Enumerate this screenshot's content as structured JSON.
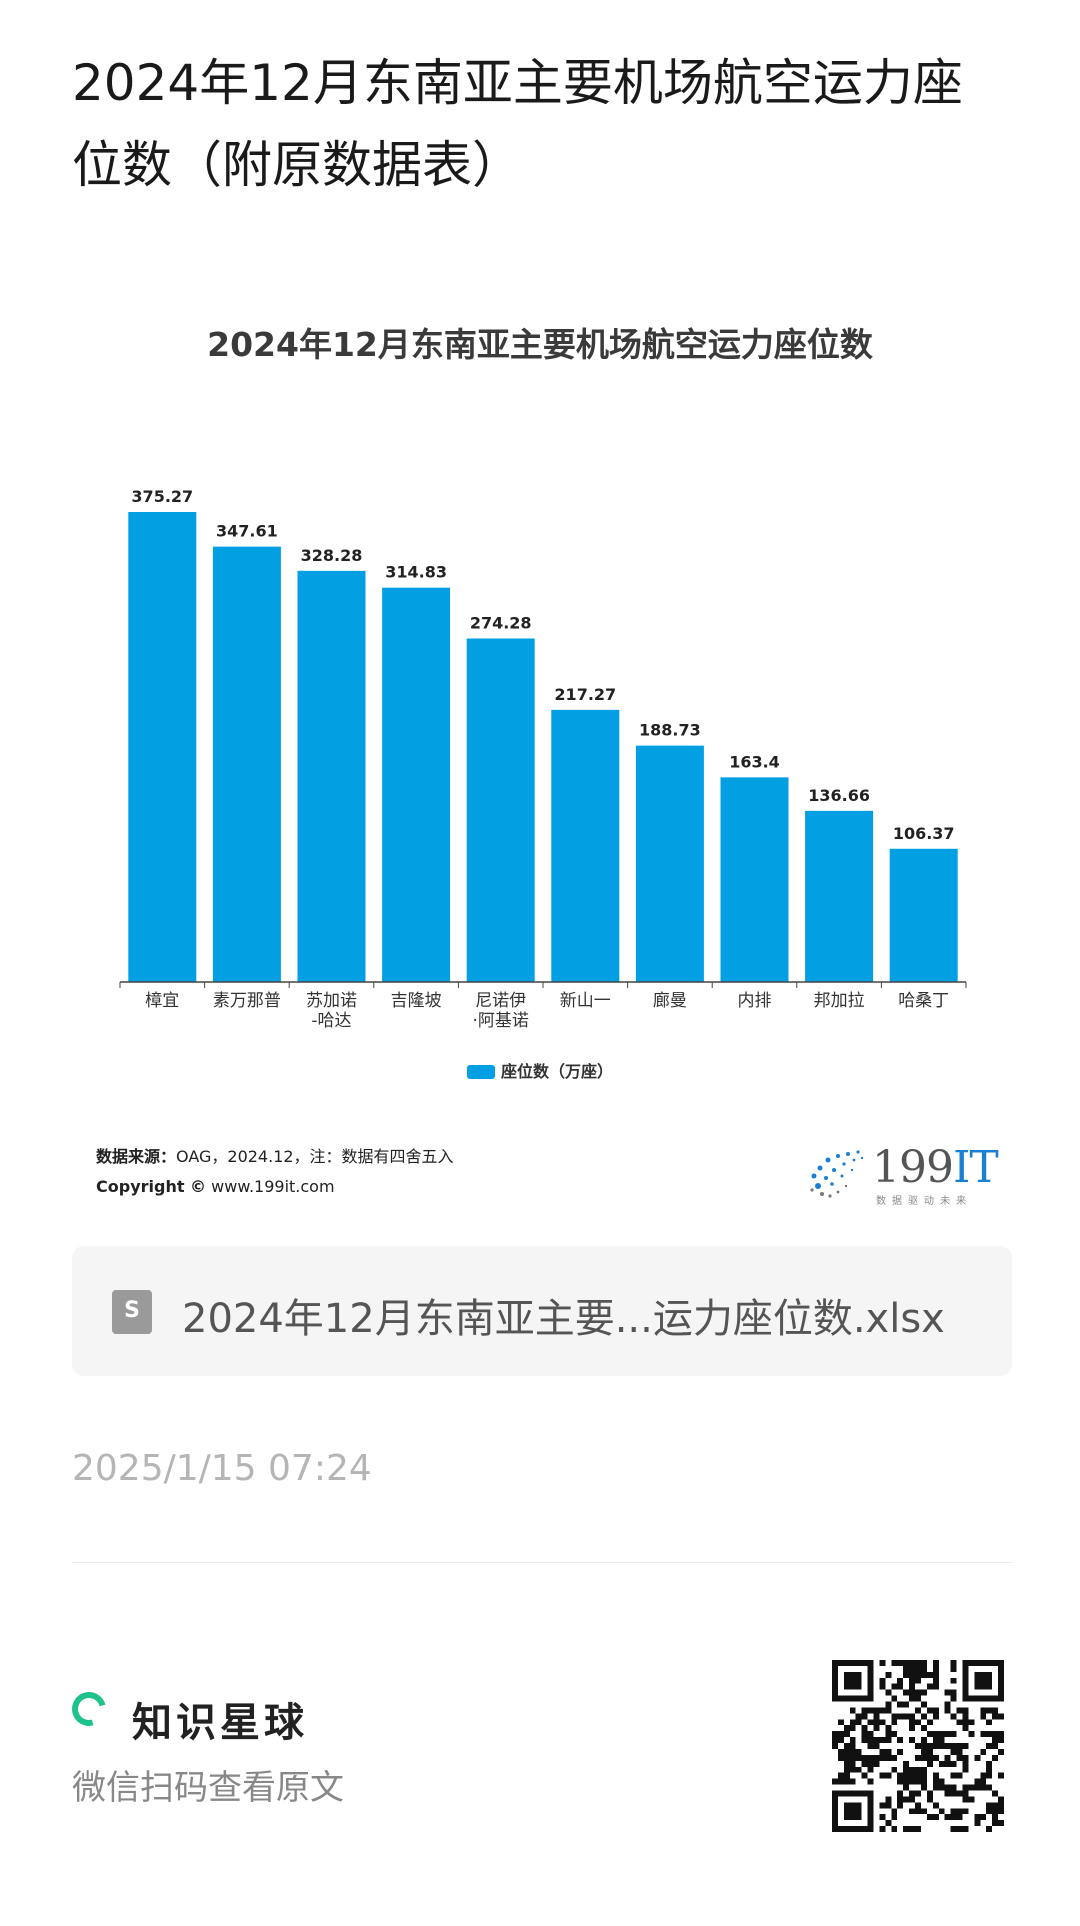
{
  "page": {
    "title": "2024年12月东南亚主要机场航空运力座位数（附原数据表）"
  },
  "chart_data": {
    "type": "bar",
    "title": "2024年12月东南亚主要机场航空运力座位数",
    "categories": [
      "樟宜",
      "素万那普",
      "苏加诺-哈达",
      "吉隆坡",
      "尼诺伊·阿基诺",
      "新山一",
      "廊曼",
      "内排",
      "邦加拉",
      "哈桑丁"
    ],
    "category_lines": [
      [
        "樟宜"
      ],
      [
        "素万那普"
      ],
      [
        "苏加诺",
        "-哈达"
      ],
      [
        "吉隆坡"
      ],
      [
        "尼诺伊",
        "·阿基诺"
      ],
      [
        "新山一"
      ],
      [
        "廊曼"
      ],
      [
        "内排"
      ],
      [
        "邦加拉"
      ],
      [
        "哈桑丁"
      ]
    ],
    "series": [
      {
        "name": "座位数（万座）",
        "values": [
          375.27,
          347.61,
          328.28,
          314.83,
          274.28,
          217.27,
          188.73,
          163.4,
          136.66,
          106.37
        ],
        "labels": [
          "375.27",
          "347.61",
          "328.28",
          "314.83",
          "274.28",
          "217.27",
          "188.73",
          "163.4",
          "136.66",
          "106.37"
        ]
      }
    ],
    "ylim": [
      0,
      375.27
    ],
    "color": "#039fe3",
    "grid": false,
    "legend_position": "bottom"
  },
  "chart_footer": {
    "source_label": "数据来源：",
    "source_text": "OAG，2024.12，注：数据有四舍五入",
    "copyright_label": "Copyright ©",
    "copyright_text": "www.199it.com",
    "logo_text": "199",
    "logo_text_accent": "IT",
    "logo_tagline": "数据驱动未来"
  },
  "attachment": {
    "icon": "spreadsheet-file-icon",
    "icon_glyph": "S",
    "filename": "2024年12月东南亚主要...运力座位数.xlsx"
  },
  "meta": {
    "timestamp": "2025/1/15 07:24"
  },
  "footer": {
    "brand_name": "知识星球",
    "brand_color": "#1ec389",
    "scan_hint": "微信扫码查看原文"
  }
}
